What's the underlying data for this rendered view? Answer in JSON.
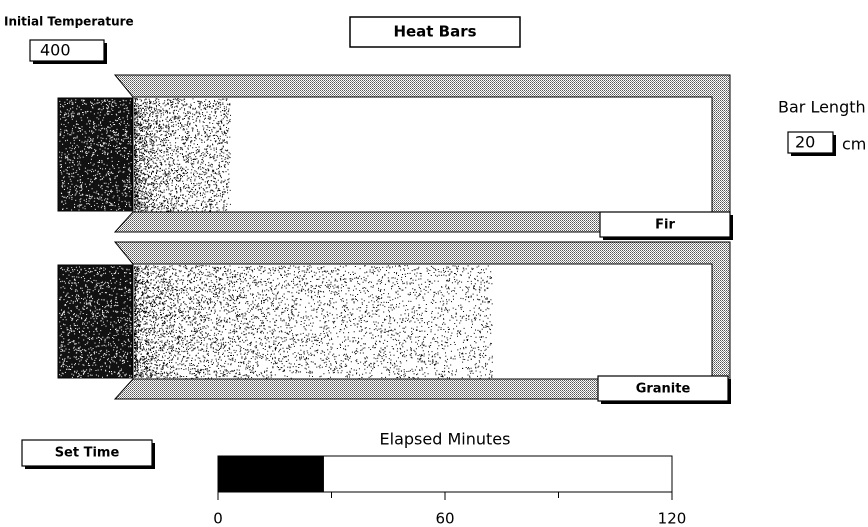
{
  "header": {
    "title": "Heat Bars"
  },
  "initial_temperature": {
    "label": "Initial Temperature",
    "value": 400
  },
  "bar_length": {
    "label": "Bar Length",
    "value": 20,
    "unit": "cm"
  },
  "bars": [
    {
      "name": "Fir"
    },
    {
      "name": "Granite"
    }
  ],
  "set_time": {
    "label": "Set Time"
  },
  "elapsed": {
    "label": "Elapsed Minutes",
    "value": 28,
    "lim": [
      0,
      120
    ],
    "ticks": [
      0,
      60,
      120
    ],
    "minor_ticks": [
      30,
      90
    ]
  }
}
